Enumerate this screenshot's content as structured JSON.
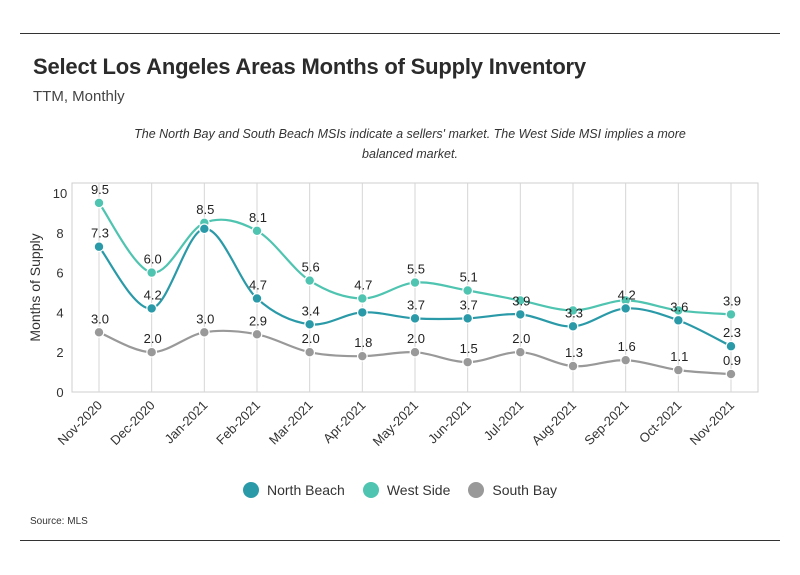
{
  "header": {
    "title": "Select Los Angeles Areas Months of Supply Inventory",
    "subtitle": "TTM, Monthly",
    "note": "The North Bay and South Beach MSIs indicate a sellers' market. The West Side MSI implies a more balanced market."
  },
  "footer": {
    "source": "Source:  MLS"
  },
  "chart_data": {
    "type": "line",
    "categories": [
      "Nov-2020",
      "Dec-2020",
      "Jan-2021",
      "Feb-2021",
      "Mar-2021",
      "Apr-2021",
      "May-2021",
      "Jun-2021",
      "Jul-2021",
      "Aug-2021",
      "Sep-2021",
      "Oct-2021",
      "Nov-2021"
    ],
    "series": [
      {
        "name": "North Beach",
        "color": "#2a9aa8",
        "values": [
          7.3,
          4.2,
          8.2,
          4.7,
          3.4,
          4.0,
          3.7,
          3.7,
          3.9,
          3.3,
          4.2,
          3.6,
          2.3
        ],
        "labels": [
          "7.3",
          "4.2",
          "",
          "4.7",
          "3.4",
          "",
          "3.7",
          "3.7",
          "3.9",
          "3.3",
          "4.2",
          "3.6",
          "2.3"
        ]
      },
      {
        "name": "West Side",
        "color": "#4fc4b0",
        "values": [
          9.5,
          6.0,
          8.5,
          8.1,
          5.6,
          4.7,
          5.5,
          5.1,
          4.6,
          4.1,
          4.6,
          4.1,
          3.9
        ],
        "labels": [
          "9.5",
          "6.0",
          "8.5",
          "8.1",
          "5.6",
          "4.7",
          "5.5",
          "5.1",
          "",
          "",
          "",
          "",
          "3.9"
        ]
      },
      {
        "name": "South Bay",
        "color": "#999999",
        "values": [
          3.0,
          2.0,
          3.0,
          2.9,
          2.0,
          1.8,
          2.0,
          1.5,
          2.0,
          1.3,
          1.6,
          1.1,
          0.9
        ],
        "labels": [
          "3.0",
          "2.0",
          "3.0",
          "2.9",
          "2.0",
          "1.8",
          "2.0",
          "1.5",
          "2.0",
          "1.3",
          "1.6",
          "1.1",
          "0.9"
        ]
      }
    ],
    "ylabel": "Months of Supply",
    "ylim": [
      0,
      10
    ],
    "yticks": [
      "0",
      "2",
      "4",
      "6",
      "8",
      "10"
    ],
    "grid": "vertical",
    "legend": "bottom-center"
  }
}
